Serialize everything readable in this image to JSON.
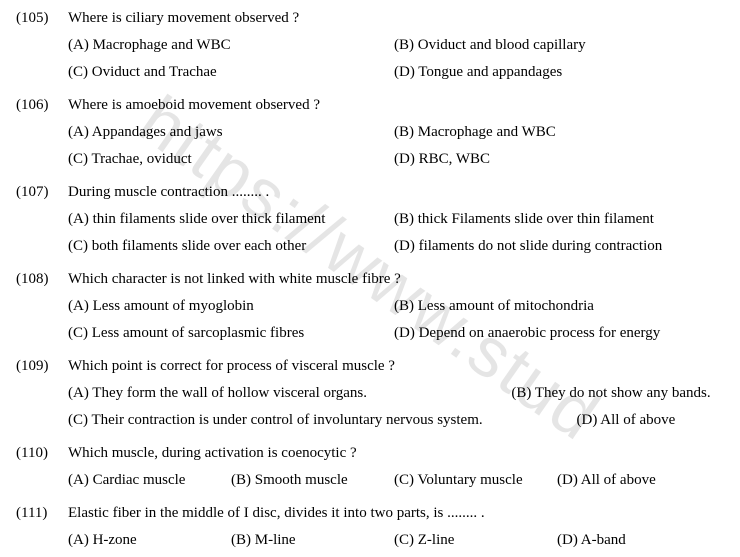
{
  "watermark": "https://www.stud",
  "questions": [
    {
      "num": "(105)",
      "text": "Where is ciliary movement observed ?",
      "layout": "half",
      "options": [
        "(A) Macrophage and WBC",
        "(B) Oviduct and blood capillary",
        "(C) Oviduct and Trachae",
        "(D) Tongue and appandages"
      ]
    },
    {
      "num": "(106)",
      "text": "Where is amoeboid movement observed ?",
      "layout": "half",
      "options": [
        "(A) Appandages and jaws",
        "(B) Macrophage and WBC",
        "(C) Trachae, oviduct",
        "(D) RBC, WBC"
      ]
    },
    {
      "num": "(107)",
      "text": "During muscle contraction ........ .",
      "layout": "half",
      "options": [
        "(A) thin filaments slide over thick filament",
        "(B) thick Filaments slide over thin filament",
        "(C) both filaments slide over each other",
        "(D) filaments do not slide during contraction"
      ]
    },
    {
      "num": "(108)",
      "text": "Which character is not linked with white muscle fibre ?",
      "layout": "half",
      "options": [
        "(A) Less amount of myoglobin",
        "(B) Less amount of mitochondria",
        "(C) Less amount of sarcoplasmic fibres",
        "(D) Depend on anaerobic process for energy"
      ]
    },
    {
      "num": "(109)",
      "text": "Which point is correct for process of visceral muscle ?",
      "layout": "q109",
      "options": [
        "(A) They form the wall of hollow visceral organs.",
        "(B) They do not show any bands.",
        "(C) Their contraction is under control of involuntary nervous system.",
        "(D) All of above"
      ]
    },
    {
      "num": "(110)",
      "text": "Which muscle, during activation is coenocytic ?",
      "layout": "quarter",
      "options": [
        "(A) Cardiac muscle",
        "(B) Smooth muscle",
        "(C) Voluntary muscle",
        "(D) All of above"
      ]
    },
    {
      "num": "(111)",
      "text": "Elastic fiber in the middle of I disc, divides it into two parts, is ........ .",
      "layout": "quarter",
      "options": [
        "(A) H-zone",
        "(B) M-line",
        "(C) Z-line",
        "(D) A-band"
      ]
    }
  ]
}
